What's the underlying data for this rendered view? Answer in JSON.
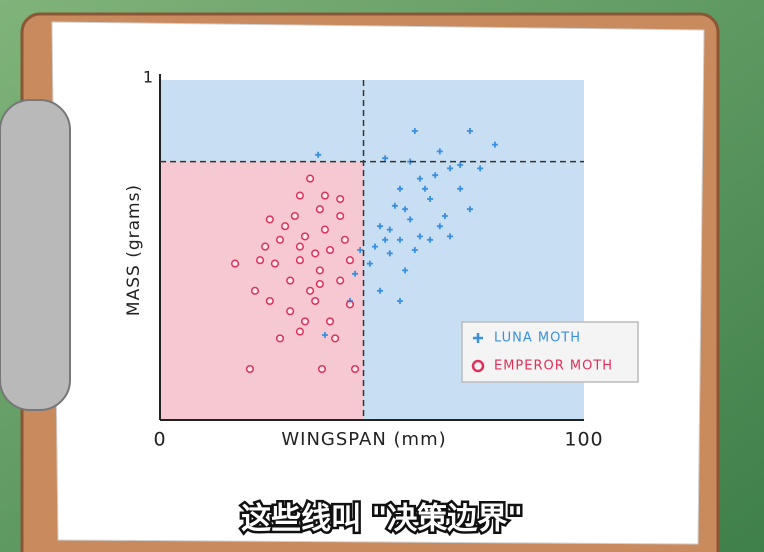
{
  "chart_data": {
    "type": "scatter",
    "xlabel": "WINGSPAN (mm)",
    "ylabel": "MASS (grams)",
    "xlim": [
      0,
      100
    ],
    "ylim": [
      0,
      1
    ],
    "xticks": [
      0,
      100
    ],
    "yticks": [
      1
    ],
    "boundaries": {
      "x": 48,
      "y": 0.76
    },
    "region_colors": {
      "inside": "#f6c8d2",
      "outside": "#c8def3"
    },
    "legend": "lower right",
    "series": [
      {
        "name": "LUNA MOTH",
        "color": "#3a8fe0",
        "marker": "plus",
        "x": [
          60.1,
          73.1,
          79.0,
          66.0,
          59.0,
          53.1,
          37.3,
          68.4,
          75.5,
          61.3,
          56.6,
          70.8,
          63.7,
          55.4,
          67.2,
          59.0,
          51.9,
          73.1,
          61.3,
          56.6,
          47.2,
          54.2,
          63.7,
          68.4,
          49.5,
          57.8,
          51.9,
          56.6,
          44.8,
          38.9,
          46.0,
          66.0,
          60.1,
          53.1,
          70.8,
          62.5,
          57.8,
          54.2,
          50.7,
          64.9
        ],
        "values": [
          0.85,
          0.85,
          0.81,
          0.79,
          0.76,
          0.77,
          0.78,
          0.74,
          0.74,
          0.71,
          0.68,
          0.68,
          0.65,
          0.63,
          0.6,
          0.59,
          0.57,
          0.62,
          0.54,
          0.53,
          0.5,
          0.49,
          0.53,
          0.54,
          0.46,
          0.44,
          0.38,
          0.35,
          0.35,
          0.25,
          0.43,
          0.57,
          0.5,
          0.53,
          0.75,
          0.68,
          0.62,
          0.56,
          0.51,
          0.72
        ]
      },
      {
        "name": "EMPEROR MOTH",
        "color": "#e0305a",
        "marker": "circle",
        "x": [
          21.2,
          38.2,
          46.0,
          28.3,
          33.0,
          40.1,
          25.9,
          35.4,
          30.7,
          37.7,
          42.5,
          23.6,
          33.0,
          36.6,
          40.1,
          28.3,
          34.2,
          38.9,
          43.6,
          25.9,
          31.8,
          37.7,
          42.5,
          33.0,
          38.9,
          35.4,
          17.7,
          44.8,
          30.7,
          22.4,
          27.1,
          36.6,
          34.2,
          41.3,
          29.5,
          24.8,
          44.8,
          33.0,
          37.7,
          42.5
        ],
        "values": [
          0.15,
          0.15,
          0.15,
          0.24,
          0.26,
          0.29,
          0.35,
          0.38,
          0.41,
          0.44,
          0.41,
          0.47,
          0.47,
          0.49,
          0.5,
          0.53,
          0.54,
          0.56,
          0.53,
          0.59,
          0.6,
          0.62,
          0.6,
          0.66,
          0.66,
          0.71,
          0.46,
          0.34,
          0.32,
          0.38,
          0.46,
          0.35,
          0.29,
          0.24,
          0.57,
          0.51,
          0.47,
          0.51,
          0.4,
          0.65
        ]
      }
    ]
  },
  "caption": "这些线叫 \"决策边界\""
}
